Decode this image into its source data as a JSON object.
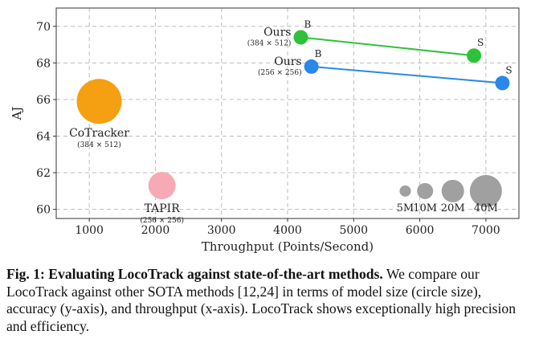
{
  "chart_data": {
    "type": "scatter",
    "xlabel": "Throughput (Points/Second)",
    "ylabel": "AJ",
    "xlim": [
      500,
      7500
    ],
    "ylim": [
      59.5,
      71
    ],
    "xticks": [
      1000,
      2000,
      3000,
      4000,
      5000,
      6000,
      7000
    ],
    "yticks": [
      60,
      62,
      64,
      66,
      68,
      70
    ],
    "grid": true,
    "methods": [
      {
        "name": "CoTracker",
        "resolution": "(384 × 512)",
        "throughput": 1150,
        "aj": 65.9,
        "size": "large",
        "color": "#f5a012"
      },
      {
        "name": "TAPIR",
        "resolution": "(256 × 256)",
        "throughput": 2100,
        "aj": 61.3,
        "size": "medium",
        "color": "#f7aab6"
      }
    ],
    "series": [
      {
        "name": "Ours",
        "resolution": "(384 × 512)",
        "color": "#2ec23a",
        "points": [
          {
            "label": "B",
            "throughput": 4200,
            "aj": 69.4
          },
          {
            "label": "S",
            "throughput": 6820,
            "aj": 68.4
          }
        ]
      },
      {
        "name": "Ours",
        "resolution": "(256 × 256)",
        "color": "#2a88e8",
        "points": [
          {
            "label": "B",
            "throughput": 4360,
            "aj": 67.8
          },
          {
            "label": "S",
            "throughput": 7250,
            "aj": 66.9
          }
        ]
      }
    ],
    "size_legend": [
      {
        "label": "5M",
        "x": 5780
      },
      {
        "label": "10M",
        "x": 6080
      },
      {
        "label": "20M",
        "x": 6500
      },
      {
        "label": "40M",
        "x": 7000
      }
    ]
  },
  "caption": {
    "lead": "Fig. 1: Evaluating LocoTrack against state-of-the-art methods.",
    "body": "We compare our LocoTrack against other SOTA methods [12,24] in terms of model size (circle size), accuracy (y-axis), and throughput (x-axis). LocoTrack shows exceptionally high precision and efficiency."
  }
}
